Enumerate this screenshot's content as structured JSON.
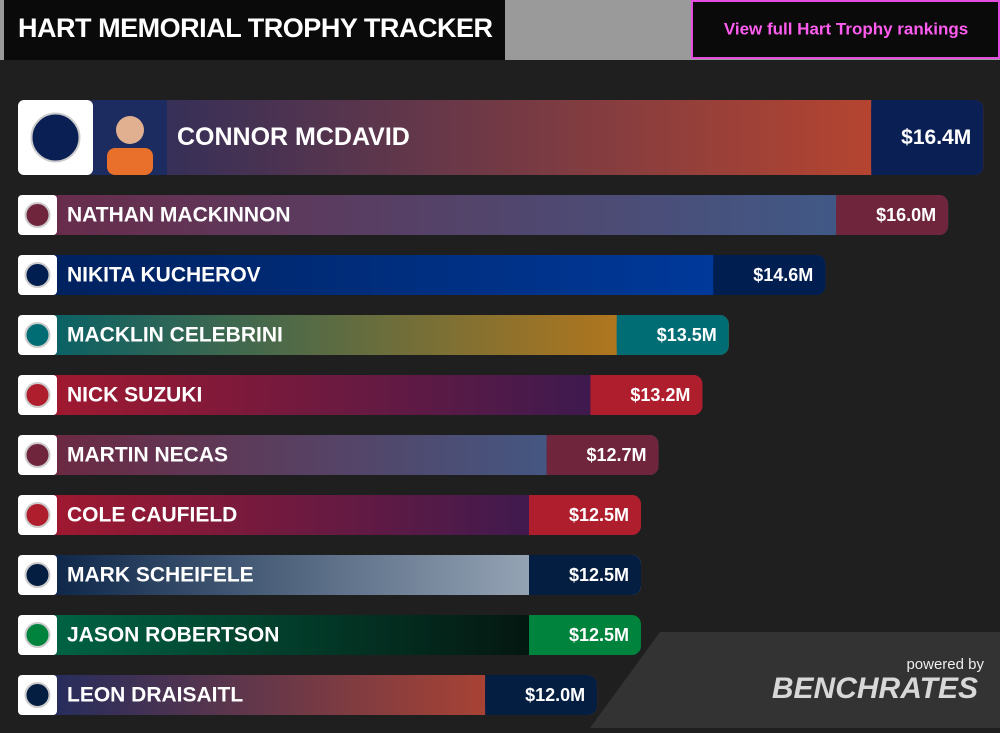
{
  "chart_data": {
    "type": "bar",
    "orientation": "horizontal",
    "title": "HART MEMORIAL TROPHY TRACKER",
    "categories": [
      "CONNOR MCDAVID",
      "NATHAN MACKINNON",
      "NIKITA KUCHEROV",
      "MACKLIN CELEBRINI",
      "NICK SUZUKI",
      "MARTIN NECAS",
      "COLE CAUFIELD",
      "MARK SCHEIFELE",
      "JASON ROBERTSON",
      "LEON DRAISAITL"
    ],
    "values": [
      16.4,
      16.0,
      14.6,
      13.5,
      13.2,
      12.7,
      12.5,
      12.5,
      12.5,
      12.0
    ],
    "value_labels": [
      "$16.4M",
      "$16.0M",
      "$14.6M",
      "$13.5M",
      "$13.2M",
      "$12.7M",
      "$12.5M",
      "$12.5M",
      "$12.5M",
      "$12.0M"
    ],
    "xlim": [
      5.4,
      16.5
    ],
    "gradient_colors": [
      [
        "#1c2b60",
        "#c9482a"
      ],
      [
        "#6a2a48",
        "#3b5f8f"
      ],
      [
        "#00205b",
        "#003da5"
      ],
      [
        "#00606a",
        "#d07a10"
      ],
      [
        "#a6192e",
        "#2a1a55"
      ],
      [
        "#6f263d",
        "#3b6190"
      ],
      [
        "#a6192e",
        "#2a1a55"
      ],
      [
        "#041e42",
        "#b4c0cd"
      ],
      [
        "#006847",
        "#050505"
      ],
      [
        "#1c2b60",
        "#c9482a"
      ]
    ],
    "colors": [
      "#0a2055",
      "#6f263d",
      "#001e4f",
      "#006d75",
      "#af1e2d",
      "#6f263d",
      "#af1e2d",
      "#041e42",
      "#00843d",
      "#041e42"
    ]
  },
  "link": "View full Hart Trophy rankings",
  "powered_by": "powered by",
  "brand": "BENCHRATES"
}
